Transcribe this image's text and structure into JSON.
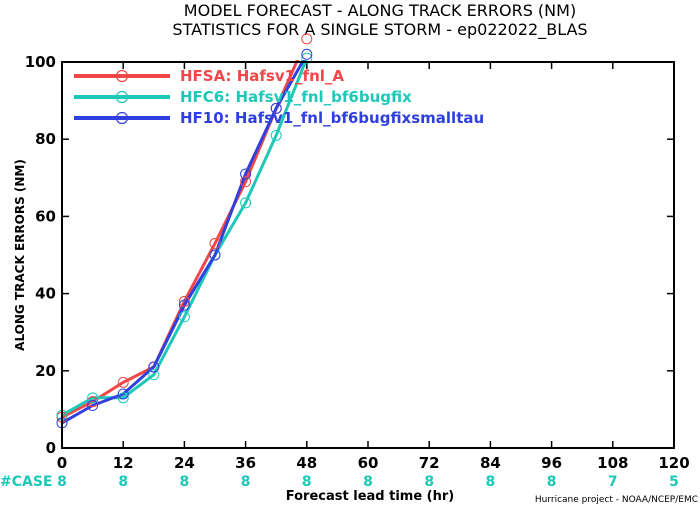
{
  "chart_data": {
    "type": "line",
    "title": [
      "MODEL FORECAST - ALONG TRACK ERRORS (NM)",
      "STATISTICS FOR A SINGLE STORM - ep022022_BLAS"
    ],
    "xlabel": "Forecast lead time (hr)",
    "ylabel": "ALONG TRACK ERRORS (NM)",
    "xlim": [
      0,
      120
    ],
    "ylim": [
      0,
      100
    ],
    "xticks": [
      0,
      12,
      24,
      36,
      48,
      60,
      72,
      84,
      96,
      108,
      120
    ],
    "yticks": [
      0,
      20,
      40,
      60,
      80,
      100
    ],
    "grid": false,
    "legend_position": "top-left",
    "series": [
      {
        "name": "HFSA: Hafsv1_fnl_A",
        "color": "#f04848",
        "x": [
          0,
          6,
          12,
          18,
          24,
          30,
          36,
          42,
          48
        ],
        "y": [
          8,
          12,
          17,
          21,
          38,
          53,
          69,
          88,
          106
        ]
      },
      {
        "name": "HFC6: Hafsv1_fnl_bf6bugfix",
        "color": "#1ec8b8",
        "x": [
          0,
          6,
          12,
          18,
          24,
          30,
          36,
          42,
          48
        ],
        "y": [
          8.5,
          13,
          13,
          19,
          34,
          50,
          63.5,
          81,
          101
        ]
      },
      {
        "name": "HF10: Hafsv1_fnl_bf6bugfixsmalltau",
        "color": "#3040e0",
        "x": [
          0,
          6,
          12,
          18,
          24,
          30,
          36,
          42,
          48
        ],
        "y": [
          6.5,
          11,
          14,
          21,
          37,
          50,
          71,
          88,
          102
        ]
      }
    ],
    "cases": {
      "label": "#CASE",
      "color": "#1ec8b8",
      "x": [
        0,
        12,
        24,
        36,
        48,
        60,
        72,
        84,
        96,
        108,
        120
      ],
      "values": [
        "8",
        "8",
        "8",
        "8",
        "8",
        "8",
        "8",
        "8",
        "8",
        "7",
        "5"
      ]
    }
  },
  "credit": "Hurricane project - NOAA/NCEP/EMC"
}
